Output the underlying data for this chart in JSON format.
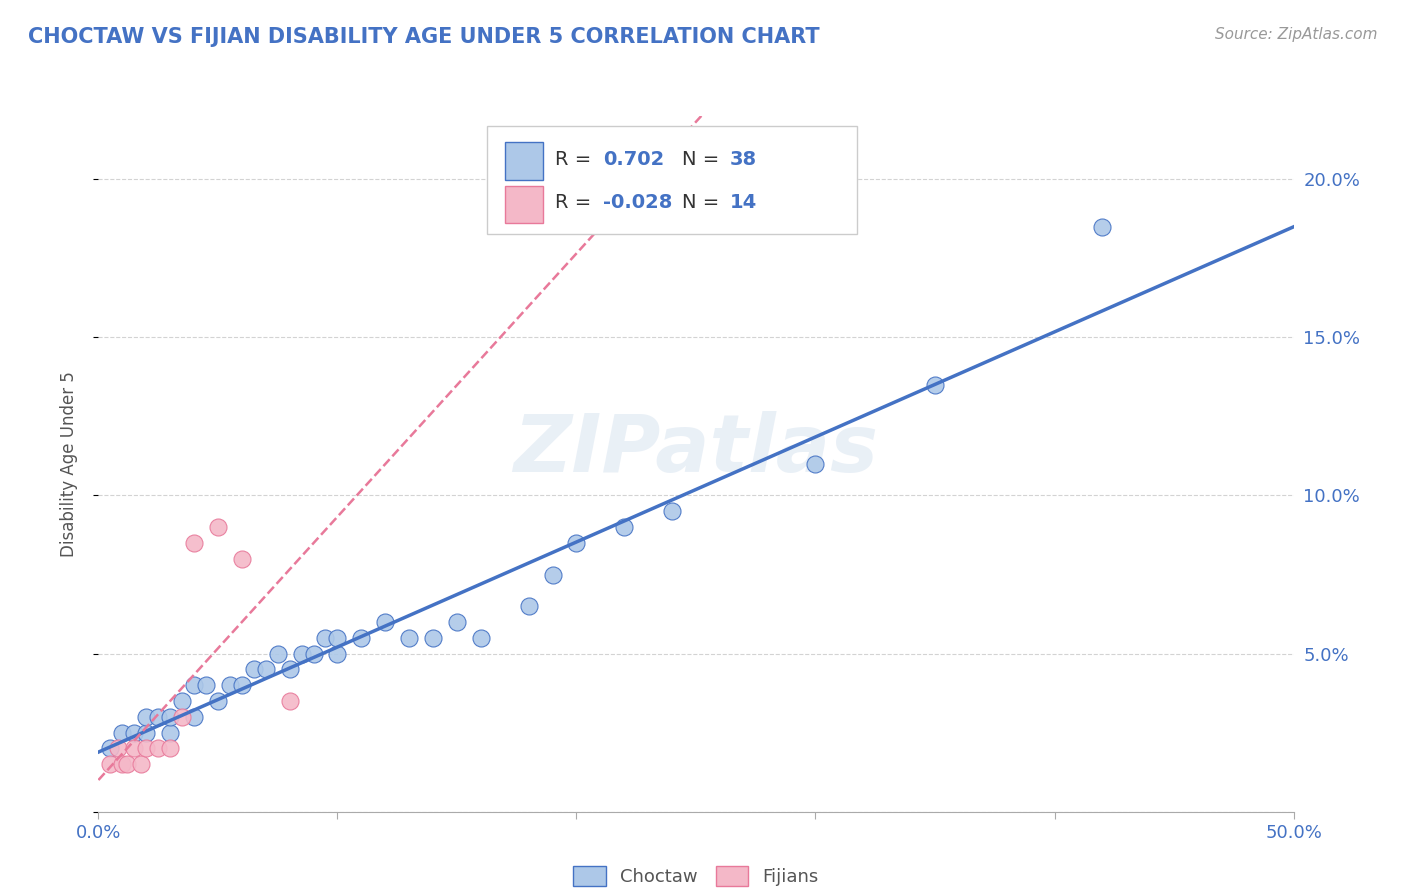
{
  "title": "CHOCTAW VS FIJIAN DISABILITY AGE UNDER 5 CORRELATION CHART",
  "source_text": "Source: ZipAtlas.com",
  "ylabel": "Disability Age Under 5",
  "xlim": [
    0.0,
    0.5
  ],
  "ylim": [
    0.0,
    0.22
  ],
  "xticks": [
    0.0,
    0.1,
    0.2,
    0.3,
    0.4,
    0.5
  ],
  "xtick_labels": [
    "0.0%",
    "",
    "",
    "",
    "",
    "50.0%"
  ],
  "yticks": [
    0.0,
    0.05,
    0.1,
    0.15,
    0.2
  ],
  "ytick_labels": [
    "",
    "5.0%",
    "10.0%",
    "15.0%",
    "20.0%"
  ],
  "choctaw_R": 0.702,
  "choctaw_N": 38,
  "fijian_R": -0.028,
  "fijian_N": 14,
  "choctaw_color": "#adc8e8",
  "fijian_color": "#f4b8c8",
  "choctaw_line_color": "#4472c4",
  "fijian_line_color": "#e8799a",
  "watermark": "ZIPatlas",
  "choctaw_x": [
    0.005,
    0.01,
    0.015,
    0.02,
    0.02,
    0.025,
    0.03,
    0.03,
    0.035,
    0.04,
    0.04,
    0.045,
    0.05,
    0.055,
    0.06,
    0.065,
    0.07,
    0.075,
    0.08,
    0.085,
    0.09,
    0.095,
    0.1,
    0.1,
    0.11,
    0.12,
    0.13,
    0.14,
    0.15,
    0.16,
    0.18,
    0.19,
    0.2,
    0.22,
    0.24,
    0.3,
    0.35,
    0.42
  ],
  "choctaw_y": [
    0.02,
    0.025,
    0.025,
    0.025,
    0.03,
    0.03,
    0.025,
    0.03,
    0.035,
    0.03,
    0.04,
    0.04,
    0.035,
    0.04,
    0.04,
    0.045,
    0.045,
    0.05,
    0.045,
    0.05,
    0.05,
    0.055,
    0.05,
    0.055,
    0.055,
    0.06,
    0.055,
    0.055,
    0.06,
    0.055,
    0.065,
    0.075,
    0.085,
    0.09,
    0.095,
    0.11,
    0.135,
    0.185
  ],
  "fijian_x": [
    0.005,
    0.008,
    0.01,
    0.012,
    0.015,
    0.018,
    0.02,
    0.025,
    0.03,
    0.035,
    0.04,
    0.05,
    0.06,
    0.08
  ],
  "fijian_y": [
    0.015,
    0.02,
    0.015,
    0.015,
    0.02,
    0.015,
    0.02,
    0.02,
    0.02,
    0.03,
    0.085,
    0.09,
    0.08,
    0.035
  ]
}
